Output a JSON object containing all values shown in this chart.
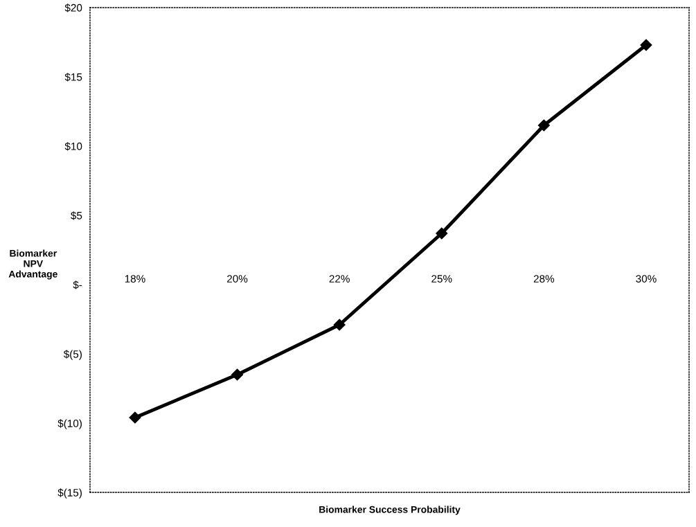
{
  "chart_data": {
    "type": "line",
    "xlabel": "Biomarker Success Probability",
    "ylabel": "Biomarker\nNPV\nAdvantage",
    "categories": [
      "18%",
      "20%",
      "22%",
      "25%",
      "28%",
      "30%"
    ],
    "series": [
      {
        "color": "#000000",
        "values": [
          -9.6,
          -6.5,
          -2.9,
          3.7,
          11.5,
          17.3
        ]
      }
    ],
    "ylim": [
      -15,
      20
    ],
    "yticks": [
      {
        "value": -15,
        "label": "$(15)"
      },
      {
        "value": -10,
        "label": "$(10)"
      },
      {
        "value": -5,
        "label": "$(5)"
      },
      {
        "value": 0,
        "label": "$-"
      },
      {
        "value": 5,
        "label": "$5"
      },
      {
        "value": 10,
        "label": "$10"
      },
      {
        "value": 15,
        "label": "$15"
      },
      {
        "value": 20,
        "label": "$20"
      }
    ],
    "marker": "diamond",
    "line_style": "solid",
    "grid": false,
    "legend": false
  }
}
